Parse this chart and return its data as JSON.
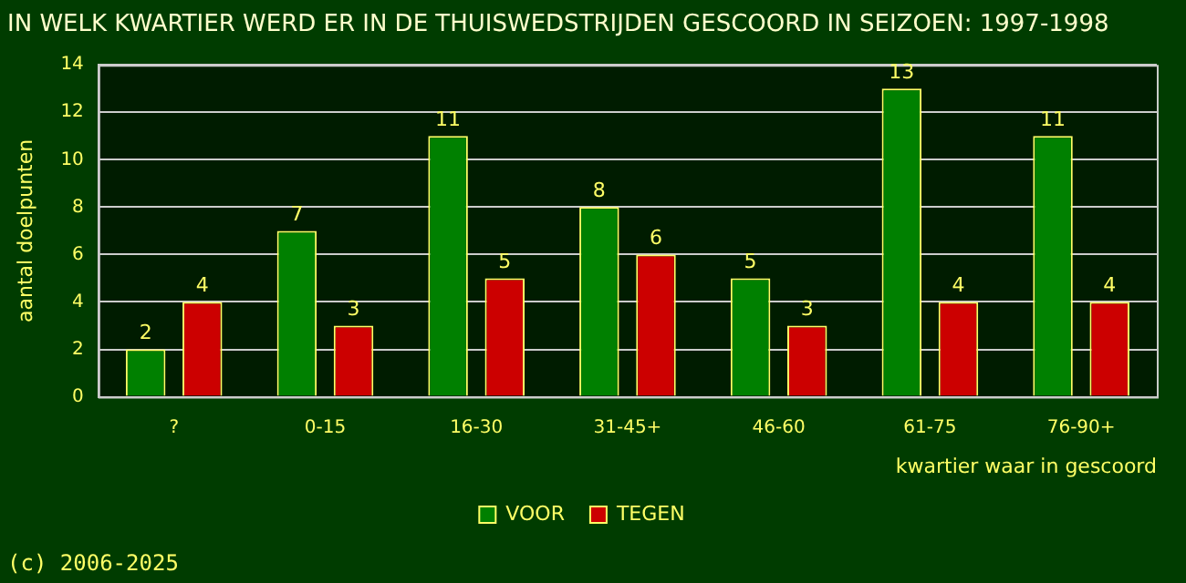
{
  "chart_data": {
    "type": "bar",
    "title": "IN WELK KWARTIER WERD ER IN DE THUISWEDSTRIJDEN GESCOORD IN SEIZOEN: 1997-1998",
    "xlabel": "kwartier waar in gescoord",
    "ylabel": "aantal doelpunten",
    "categories": [
      "?",
      "0-15",
      "16-30",
      "31-45+",
      "46-60",
      "61-75",
      "76-90+"
    ],
    "series": [
      {
        "name": "VOOR",
        "color": "#008000",
        "values": [
          2,
          7,
          11,
          8,
          5,
          13,
          11
        ]
      },
      {
        "name": "TEGEN",
        "color": "#cc0000",
        "values": [
          4,
          3,
          5,
          6,
          3,
          4,
          4
        ]
      }
    ],
    "ylim": [
      0,
      14
    ],
    "yticks": [
      0,
      2,
      4,
      6,
      8,
      10,
      12,
      14
    ],
    "grid": "y",
    "legend": "bottom",
    "data_labels": true,
    "annotations": [
      "(c) 2006-2025"
    ]
  }
}
